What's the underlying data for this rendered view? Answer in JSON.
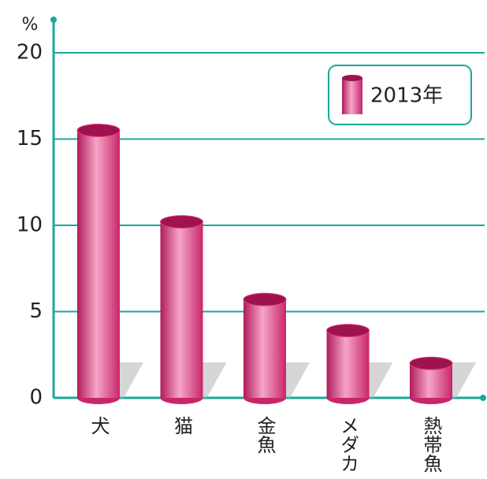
{
  "chart_data": {
    "type": "bar",
    "y_label": "%",
    "categories": [
      "犬",
      "猫",
      "金魚",
      "メダカ",
      "熱帯魚"
    ],
    "series": [
      {
        "name": "2013年",
        "color": "#e0407f",
        "values": [
          15.5,
          10.2,
          5.7,
          3.9,
          2.0
        ]
      }
    ],
    "ylim": [
      0,
      20
    ],
    "yticks": [
      0,
      5,
      10,
      15,
      20
    ],
    "grid": true,
    "legend": "upper right",
    "axis_color": "#1aa89a"
  }
}
